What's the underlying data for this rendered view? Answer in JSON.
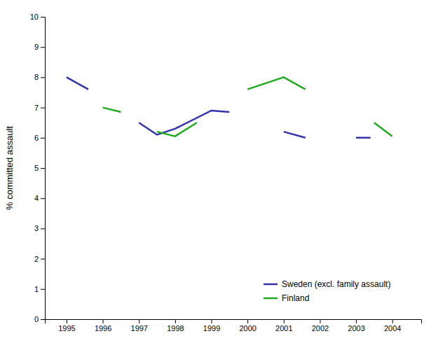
{
  "chart_data": {
    "type": "line",
    "ylabel": "% committed assault",
    "series": [
      {
        "name": "Sweden (excl. family assault)",
        "color": "#3333aa",
        "x": [
          1995,
          1995.6,
          null,
          1997,
          1997.5,
          1998,
          1999,
          1999.5,
          null,
          2001,
          2001.6,
          null,
          2003,
          2003.4
        ],
        "values": [
          8.0,
          7.6,
          null,
          6.5,
          6.1,
          6.3,
          6.9,
          6.85,
          null,
          6.2,
          6.0,
          null,
          6.0,
          6.0
        ]
      },
      {
        "name": "Finland",
        "color": "#22aa22",
        "x": [
          1996,
          1996.5,
          null,
          1997.5,
          1998,
          1998.6,
          null,
          2000,
          2001,
          2001.6,
          null,
          2003.5,
          2004
        ],
        "values": [
          7.0,
          6.85,
          null,
          6.2,
          6.05,
          6.5,
          null,
          7.6,
          8.0,
          7.6,
          null,
          6.5,
          6.05
        ]
      }
    ],
    "xlim": [
      1994.4,
      2004.8
    ],
    "xticks": [
      1995,
      1996,
      1997,
      1998,
      1999,
      2000,
      2001,
      2002,
      2003,
      2004
    ],
    "ylim": [
      0,
      10
    ],
    "yticks": [
      0,
      1,
      2,
      3,
      4,
      5,
      6,
      7,
      8,
      9,
      10
    ],
    "grid": false,
    "legend": "lower right"
  }
}
